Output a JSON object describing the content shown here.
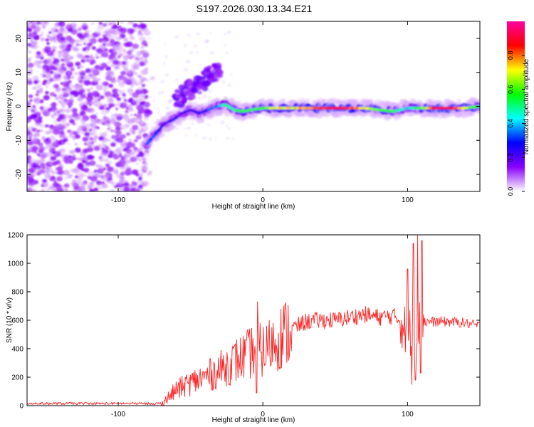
{
  "figure": {
    "title": "S197.2026.030.13.34.E21"
  },
  "chart_data": [
    {
      "type": "heatmap",
      "xlabel": "Height of straight line (km)",
      "ylabel": "Frequency (Hz)",
      "xlim": [
        -163,
        150
      ],
      "ylim": [
        -25,
        25
      ],
      "x_ticks": [
        -100,
        0,
        100
      ],
      "y_ticks": [
        -20,
        -10,
        0,
        10,
        20
      ],
      "colorbar": {
        "label": "Normalized spectral amplitude",
        "range": [
          0,
          1
        ],
        "ticks": [
          "0.0",
          "0.2",
          "0.4",
          "0.6",
          "0.8"
        ],
        "colors": [
          "#ffffff",
          "#8a00ff",
          "#0000ff",
          "#00ffff",
          "#00ff00",
          "#ffff00",
          "#ff0000",
          "#ff00a0"
        ]
      },
      "ridge": {
        "x": [
          -80,
          -74,
          -68,
          -62,
          -56,
          -50,
          -44,
          -38,
          -32,
          -26,
          -20,
          -14,
          -8,
          0,
          10,
          20,
          30,
          40,
          50,
          60,
          70,
          80,
          90,
          100,
          110,
          120,
          130,
          140,
          150
        ],
        "y": [
          -11,
          -8,
          -5,
          -4,
          -2,
          -1,
          -2,
          -1,
          0,
          0.5,
          -1,
          -1.5,
          -1,
          -0.5,
          -0.5,
          -0.5,
          -0.5,
          -0.5,
          -0.5,
          -0.5,
          -0.5,
          -1,
          -1.5,
          -0.5,
          -0.5,
          -0.5,
          -0.5,
          -0.5,
          0
        ],
        "amplitude": [
          0.35,
          0.3,
          0.2,
          0.25,
          0.2,
          0.2,
          0.25,
          0.3,
          0.35,
          0.45,
          0.5,
          0.55,
          0.55,
          0.6,
          0.7,
          0.72,
          0.75,
          0.85,
          0.9,
          0.85,
          0.72,
          0.6,
          0.55,
          0.4,
          0.6,
          0.9,
          0.88,
          0.7,
          0.5
        ],
        "branch_x": [
          -60,
          -50,
          -40,
          -30
        ],
        "branch_y": [
          2,
          5,
          8,
          11
        ],
        "noise_region_x": [
          -163,
          -80
        ]
      }
    },
    {
      "type": "line",
      "xlabel": "Height of straight line (km)",
      "ylabel": "SNR (10 * v/v)",
      "xlim": [
        -163,
        150
      ],
      "ylim": [
        0,
        1200
      ],
      "x_ticks": [
        -100,
        0,
        100
      ],
      "y_ticks": [
        0,
        200,
        400,
        600,
        800,
        1000,
        1200
      ],
      "color": "#ff2020",
      "envelope": {
        "x": [
          -163,
          -100,
          -70,
          -65,
          -60,
          -50,
          -40,
          -30,
          -20,
          -10,
          -5,
          0,
          10,
          20,
          30,
          40,
          50,
          60,
          70,
          80,
          90,
          95,
          100,
          105,
          110,
          115,
          120,
          130,
          140,
          150
        ],
        "y": [
          15,
          15,
          15,
          60,
          110,
          160,
          200,
          250,
          310,
          360,
          400,
          380,
          470,
          540,
          590,
          600,
          600,
          620,
          640,
          620,
          630,
          600,
          500,
          550,
          580,
          590,
          590,
          590,
          580,
          560
        ]
      },
      "spikes": [
        {
          "x": -4,
          "y": 730
        },
        {
          "x": -4.5,
          "y": 90
        },
        {
          "x": 100,
          "y": 960
        },
        {
          "x": 103,
          "y": 150
        },
        {
          "x": 104,
          "y": 1140
        },
        {
          "x": 105.5,
          "y": 180
        },
        {
          "x": 107,
          "y": 1200
        },
        {
          "x": 109,
          "y": 230
        },
        {
          "x": 110,
          "y": 1160
        }
      ]
    }
  ]
}
